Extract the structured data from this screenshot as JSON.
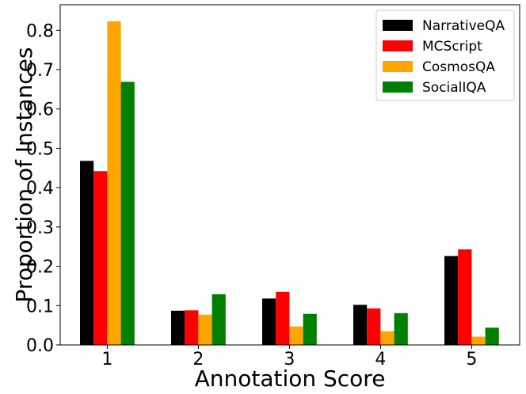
{
  "chart_data": {
    "type": "bar",
    "title": "",
    "xlabel": "Annotation Score",
    "ylabel": "Proportion of Instances",
    "categories": [
      "1",
      "2",
      "3",
      "4",
      "5"
    ],
    "ylim": [
      0,
      0.865
    ],
    "yticks": [
      "0.0",
      "0.1",
      "0.2",
      "0.3",
      "0.4",
      "0.5",
      "0.6",
      "0.7",
      "0.8"
    ],
    "grid": false,
    "legend_position": "top-right",
    "series": [
      {
        "name": "NarrativeQA",
        "color": "#000000",
        "values": [
          0.468,
          0.087,
          0.118,
          0.102,
          0.226
        ]
      },
      {
        "name": "MCScript",
        "color": "#ff0000",
        "values": [
          0.442,
          0.088,
          0.135,
          0.093,
          0.243
        ]
      },
      {
        "name": "CosmosQA",
        "color": "#ffa500",
        "values": [
          0.823,
          0.077,
          0.047,
          0.035,
          0.021
        ]
      },
      {
        "name": "SocialIQA",
        "color": "#008000",
        "values": [
          0.669,
          0.129,
          0.079,
          0.081,
          0.044
        ]
      }
    ]
  }
}
